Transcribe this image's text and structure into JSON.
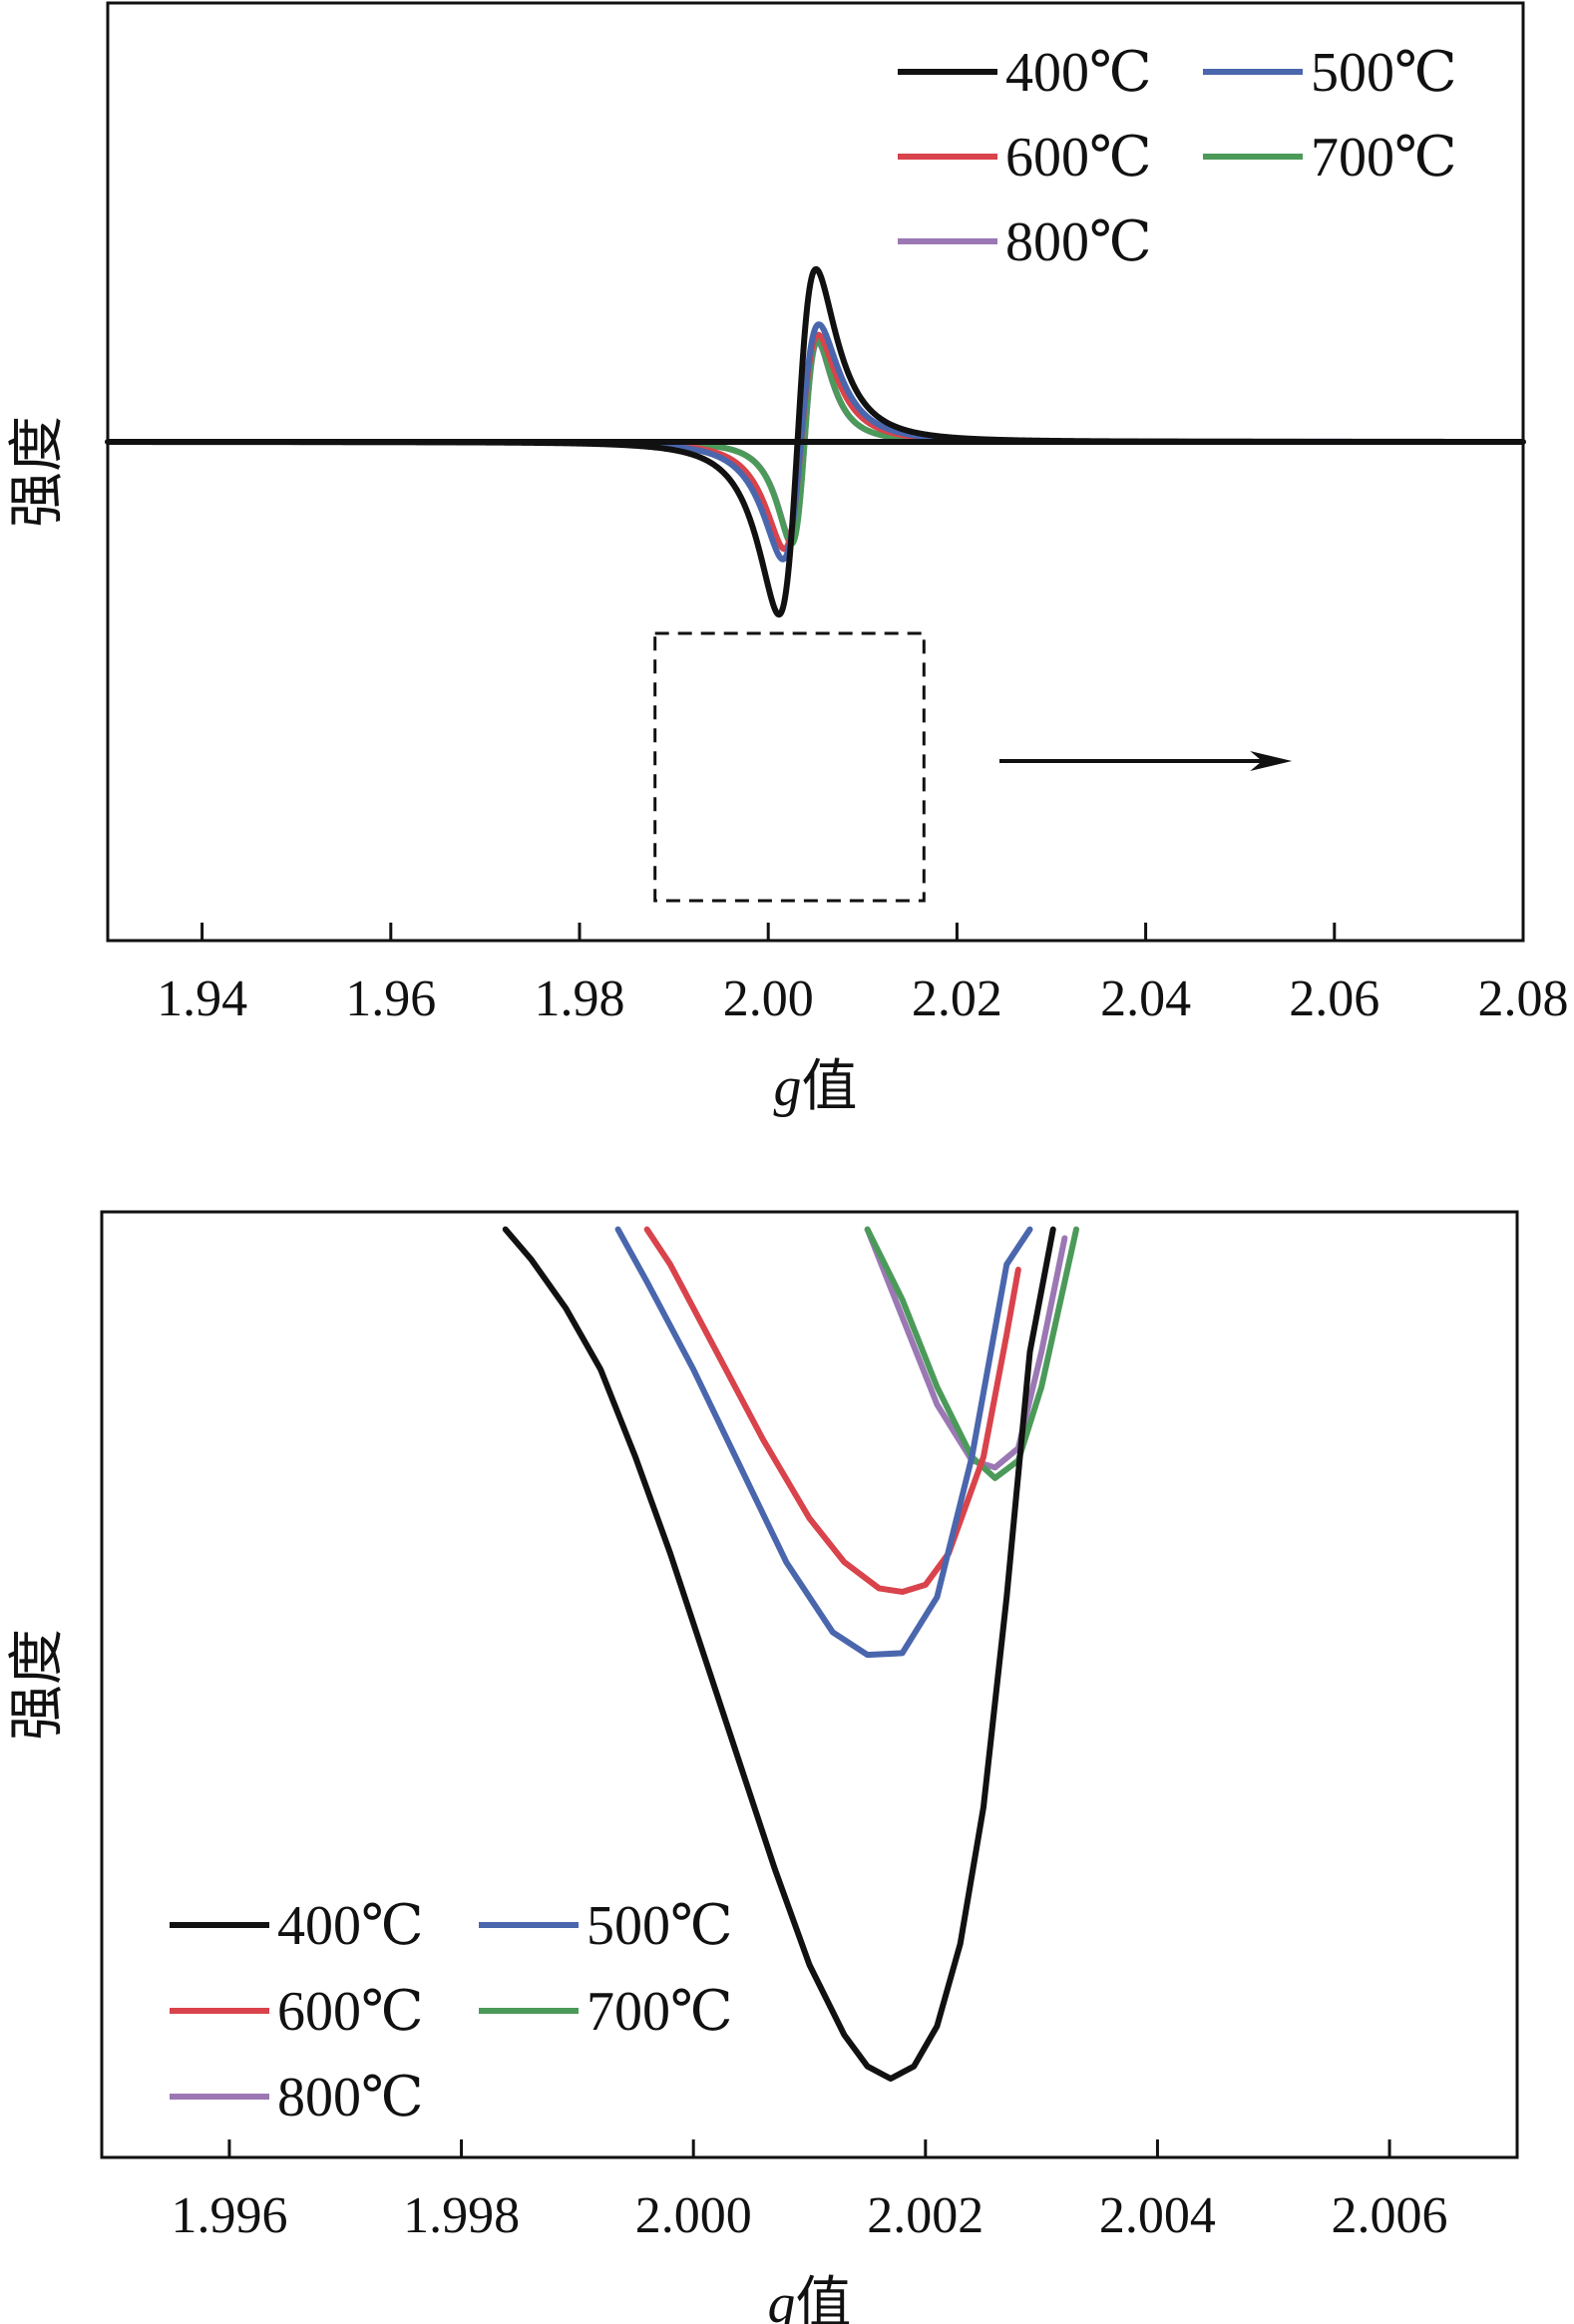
{
  "chart_data": [
    {
      "type": "line",
      "xlabel_italic": "g",
      "xlabel_rest": "值",
      "ylabel": "强度",
      "xlim": [
        1.93,
        2.08
      ],
      "x_ticks": [
        "1.94",
        "1.96",
        "1.98",
        "2.00",
        "2.02",
        "2.04",
        "2.06",
        "2.08"
      ],
      "x_tick_values": [
        1.94,
        1.96,
        1.98,
        2.0,
        2.02,
        2.04,
        2.06,
        2.08
      ],
      "ylim": [
        -1.25,
        1.1
      ],
      "legend_position": "top-right",
      "zoom_box": {
        "x": [
          1.988,
          2.0165
        ],
        "y": [
          -1.15,
          -0.48
        ]
      },
      "arrow": {
        "x": [
          2.0245,
          2.0555
        ],
        "y": -0.8
      },
      "series": [
        {
          "name": "400℃",
          "color": "#111111",
          "extent": [
            1.93,
            2.08
          ],
          "x0": 2.0031,
          "dp": 0.0034,
          "amp": 1.0
        },
        {
          "name": "500℃",
          "color": "#4a66ad",
          "extent": [
            1.9495,
            2.0625
          ],
          "x0": 2.00346,
          "dp": 0.0033,
          "amp": 0.68
        },
        {
          "name": "600℃",
          "color": "#d9434b",
          "extent": [
            1.9483,
            2.0625
          ],
          "x0": 2.00349,
          "dp": 0.0031,
          "amp": 0.62
        },
        {
          "name": "700℃",
          "color": "#4c9a5a",
          "extent": [
            1.9495,
            2.0625
          ],
          "x0": 2.00385,
          "dp": 0.0024,
          "amp": 0.59
        },
        {
          "name": "800℃",
          "color": "#9b78b4",
          "extent": [
            1.9495,
            2.0625
          ],
          "x0": 2.00385,
          "dp": 0.0024,
          "amp": 0.58
        }
      ]
    },
    {
      "type": "line",
      "xlabel_italic": "g",
      "xlabel_rest": "值",
      "ylabel": "强度",
      "xlim": [
        1.9949,
        2.0071
      ],
      "x_ticks": [
        "1.996",
        "1.998",
        "2.000",
        "2.002",
        "2.004",
        "2.006"
      ],
      "x_tick_values": [
        1.996,
        1.998,
        2.0,
        2.002,
        2.004,
        2.006
      ],
      "ylim": [
        -1.06,
        -0.52
      ],
      "legend_position": "bottom-left",
      "series": [
        {
          "name": "400℃",
          "color": "#111111",
          "x": [
            1.99838,
            1.9986,
            1.9989,
            1.9992,
            1.9995,
            1.9998,
            2.0001,
            2.0004,
            2.0007,
            2.001,
            2.0013,
            2.0015,
            2.0017,
            2.0019,
            2.0021,
            2.0023,
            2.0025,
            2.0027,
            2.0029,
            2.0031
          ],
          "y": [
            -0.53,
            -0.547,
            -0.575,
            -0.61,
            -0.66,
            -0.715,
            -0.775,
            -0.835,
            -0.895,
            -0.95,
            -0.99,
            -1.008,
            -1.015,
            -1.008,
            -0.985,
            -0.938,
            -0.86,
            -0.74,
            -0.6,
            -0.53
          ]
        },
        {
          "name": "500℃",
          "color": "#4a66ad",
          "x": [
            1.99935,
            1.9996,
            2.0,
            2.0004,
            2.0008,
            2.0012,
            2.0015,
            2.0018,
            2.0021,
            2.0024,
            2.0027,
            2.0029
          ],
          "y": [
            -0.53,
            -0.56,
            -0.61,
            -0.665,
            -0.72,
            -0.76,
            -0.773,
            -0.772,
            -0.74,
            -0.66,
            -0.55,
            -0.53
          ]
        },
        {
          "name": "600℃",
          "color": "#d9434b",
          "x": [
            1.9996,
            1.9998,
            2.0002,
            2.0006,
            2.001,
            2.0013,
            2.0016,
            2.0018,
            2.002,
            2.0022,
            2.0025,
            2.0027,
            2.0028
          ],
          "y": [
            -0.53,
            -0.55,
            -0.6,
            -0.65,
            -0.695,
            -0.72,
            -0.735,
            -0.737,
            -0.733,
            -0.715,
            -0.66,
            -0.59,
            -0.553
          ]
        },
        {
          "name": "700℃",
          "color": "#4c9a5a",
          "x": [
            2.0015,
            2.0018,
            2.0021,
            2.0024,
            2.0026,
            2.0028,
            2.003,
            2.0032,
            2.0033
          ],
          "y": [
            -0.53,
            -0.57,
            -0.62,
            -0.66,
            -0.672,
            -0.662,
            -0.62,
            -0.56,
            -0.53
          ]
        },
        {
          "name": "800℃",
          "color": "#9b78b4",
          "x": [
            2.0015,
            2.0018,
            2.0021,
            2.0024,
            2.0026,
            2.0028,
            2.003,
            2.0032
          ],
          "y": [
            -0.53,
            -0.58,
            -0.63,
            -0.662,
            -0.666,
            -0.655,
            -0.6,
            -0.535
          ]
        }
      ]
    }
  ]
}
